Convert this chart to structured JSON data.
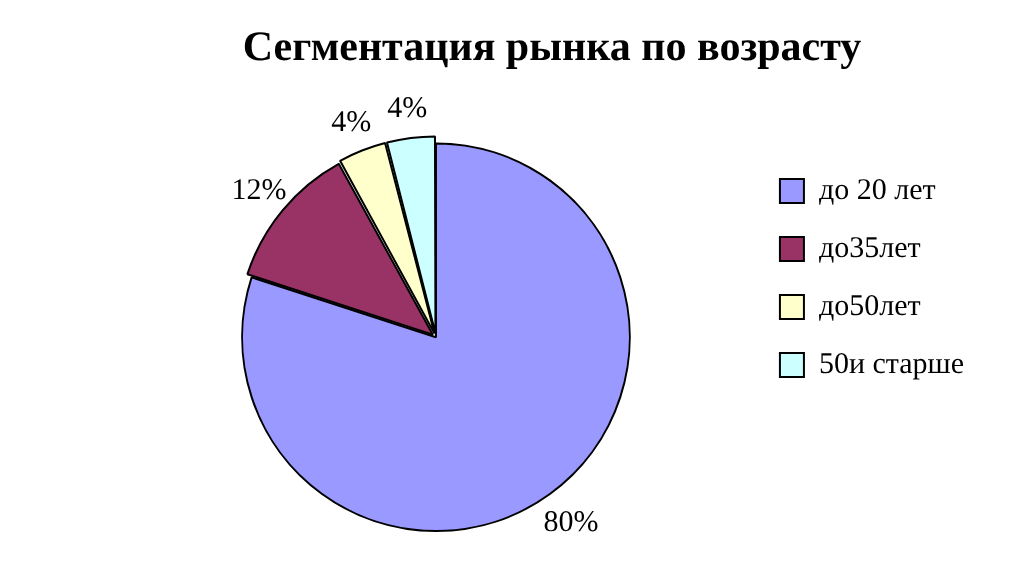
{
  "chart_data": {
    "type": "pie",
    "title": "Сегментация рынка по возрасту",
    "categories": [
      "до 20 лет",
      "до35лет",
      "до50лет",
      "50и старше"
    ],
    "values": [
      80,
      12,
      4,
      4
    ],
    "colors": [
      "#9999ff",
      "#993366",
      "#ffffcc",
      "#ccffff"
    ],
    "value_labels": [
      "80%",
      "12%",
      "4%",
      "4%"
    ],
    "legend": "right"
  }
}
